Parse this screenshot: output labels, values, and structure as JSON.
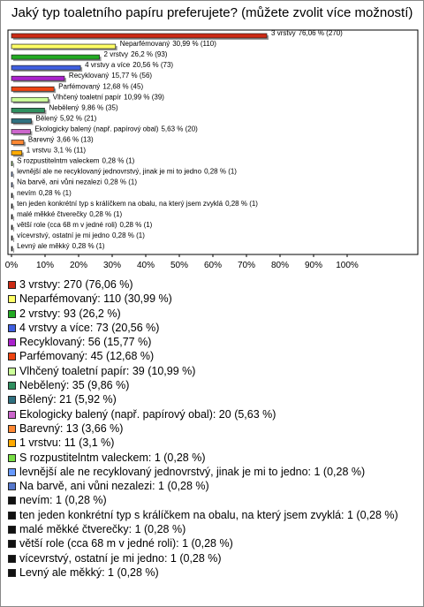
{
  "chart_data": {
    "type": "bar",
    "orientation": "horizontal",
    "title": "Jaký typ toaletního papíru preferujete? (můžete zvolit více možností)",
    "categories": [
      "3 vrstvy",
      "Neparfémovaný",
      "2 vrstvy",
      "4 vrstvy a více",
      "Recyklovaný",
      "Parfémovaný",
      "Vlhčený toaletní papír",
      "Nebělený",
      "Bělený",
      "Ekologicky balený (např. papírový obal)",
      "Barevný",
      "1 vrstvu",
      "S rozpustitelntm valeckem",
      "levnější ale ne recyklovaný jednovrstvý, jinak je mi to jedno",
      "Na barvě, ani vůni nezalezi",
      "nevím",
      "ten jeden konkrétní typ s králíčkem na obalu, na který jsem zvyklá",
      "malé měkké čtverečky",
      "větší role (cca 68 m v jedné roli)",
      "vícevrstvý, ostatní je mi jedno",
      "Levný ale měkký"
    ],
    "values": [
      76.06,
      30.99,
      26.2,
      20.56,
      15.77,
      12.68,
      10.99,
      9.86,
      5.92,
      5.63,
      3.66,
      3.1,
      0.28,
      0.28,
      0.28,
      0.28,
      0.28,
      0.28,
      0.28,
      0.28,
      0.28
    ],
    "value_labels": [
      "76,06 % (270)",
      "30,99 % (110)",
      "26,2 % (93)",
      "20,56 % (73)",
      "15,77 % (56)",
      "12,68 % (45)",
      "10,99 % (39)",
      "9,86 % (35)",
      "5,92 % (21)",
      "5,63 % (20)",
      "3,66 % (13)",
      "3,1 % (11)",
      "0,28 % (1)",
      "0,28 % (1)",
      "0,28 % (1)",
      "0,28 % (1)",
      "0,28 % (1)",
      "0,28 % (1)",
      "0,28 % (1)",
      "0,28 % (1)",
      "0,28 % (1)"
    ],
    "colors": [
      "#cc2a14",
      "#ffff66",
      "#22aa22",
      "#3f5fe0",
      "#aa22cc",
      "#ee4411",
      "#ccff99",
      "#2f8f5f",
      "#2f7080",
      "#cc66cc",
      "#ff8833",
      "#ffaa00",
      "#77dd44",
      "#6699ff",
      "#5577cc",
      "#111111",
      "#111111",
      "#111111",
      "#111111",
      "#111111",
      "#111111"
    ],
    "legend": [
      "3 vrstvy: 270 (76,06 %)",
      "Neparfémovaný: 110 (30,99 %)",
      "2 vrstvy: 93 (26,2 %)",
      "4 vrstvy a více: 73 (20,56 %)",
      "Recyklovaný: 56 (15,77 %)",
      "Parfémovaný: 45 (12,68 %)",
      "Vlhčený toaletní papír: 39 (10,99 %)",
      "Nebělený: 35 (9,86 %)",
      "Bělený: 21 (5,92 %)",
      "Ekologicky balený (např. papírový obal): 20 (5,63 %)",
      "Barevný: 13 (3,66 %)",
      "1 vrstvu: 11 (3,1 %)",
      "S rozpustitelntm valeckem: 1 (0,28 %)",
      "levnější ale ne recyklovaný jednovrstvý, jinak je mi to jedno: 1 (0,28 %)",
      "Na barvě, ani vůni nezalezi: 1 (0,28 %)",
      "nevím: 1 (0,28 %)",
      "ten jeden konkrétní typ s králíčkem na obalu, na který jsem zvyklá: 1 (0,28 %)",
      "malé měkké čtverečky: 1 (0,28 %)",
      "větší role (cca 68 m v jedné roli): 1 (0,28 %)",
      "vícevrstvý, ostatní je mi jedno: 1 (0,28 %)",
      "Levný ale měkký: 1 (0,28 %)"
    ],
    "xlim": [
      0,
      100
    ],
    "xticks": [
      {
        "value": 0,
        "label": "0%"
      },
      {
        "value": 10,
        "label": "10%"
      },
      {
        "value": 20,
        "label": "20%"
      },
      {
        "value": 30,
        "label": "30%"
      },
      {
        "value": 40,
        "label": "40%"
      },
      {
        "value": 50,
        "label": "50%"
      },
      {
        "value": 60,
        "label": "60%"
      },
      {
        "value": 70,
        "label": "70%"
      },
      {
        "value": 80,
        "label": "80%"
      },
      {
        "value": 90,
        "label": "90%"
      },
      {
        "value": 100,
        "label": "100%"
      }
    ]
  }
}
